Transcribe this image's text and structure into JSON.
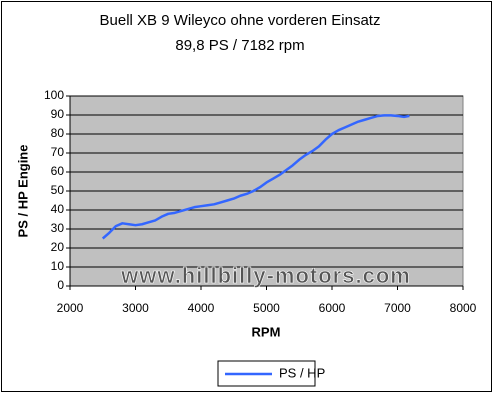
{
  "chart_data": {
    "type": "line",
    "title": "Buell XB 9 Wileyco ohne vorderen Einsatz",
    "subtitle": "89,8 PS / 7182 rpm",
    "x_label": "RPM",
    "y_label": "PS / HP Engine",
    "watermark": "www.hillbilly-motors.com",
    "x": [
      2500,
      2600,
      2700,
      2800,
      2900,
      3000,
      3100,
      3200,
      3300,
      3400,
      3500,
      3600,
      3700,
      3800,
      3900,
      4000,
      4100,
      4200,
      4300,
      4400,
      4500,
      4600,
      4700,
      4800,
      4900,
      5000,
      5100,
      5200,
      5300,
      5400,
      5500,
      5600,
      5700,
      5800,
      5900,
      6000,
      6100,
      6200,
      6300,
      6400,
      6500,
      6600,
      6700,
      6800,
      6900,
      7000,
      7100,
      7182
    ],
    "series": [
      {
        "name": "PS / HP",
        "color": "#3366ff",
        "values": [
          25,
          28,
          31.5,
          33,
          32.5,
          32,
          32.5,
          33.5,
          34.5,
          36.5,
          38,
          38.5,
          39.5,
          40.5,
          41.5,
          42,
          42.5,
          43,
          44,
          45,
          46,
          47.5,
          48.5,
          50,
          52,
          54.5,
          56.5,
          58.5,
          61,
          63.5,
          66.5,
          69,
          71,
          73.5,
          77,
          80,
          82,
          83.5,
          85,
          86.5,
          87.5,
          88.5,
          89.5,
          89.8,
          89.8,
          89.5,
          89,
          89.5
        ]
      }
    ],
    "xlim": [
      2000,
      8000
    ],
    "xticks": [
      2000,
      3000,
      4000,
      5000,
      6000,
      7000,
      8000
    ],
    "ylim": [
      0,
      100
    ],
    "yticks": [
      0,
      10,
      20,
      30,
      40,
      50,
      60,
      70,
      80,
      90,
      100
    ],
    "grid": true,
    "legend": "bottom"
  }
}
